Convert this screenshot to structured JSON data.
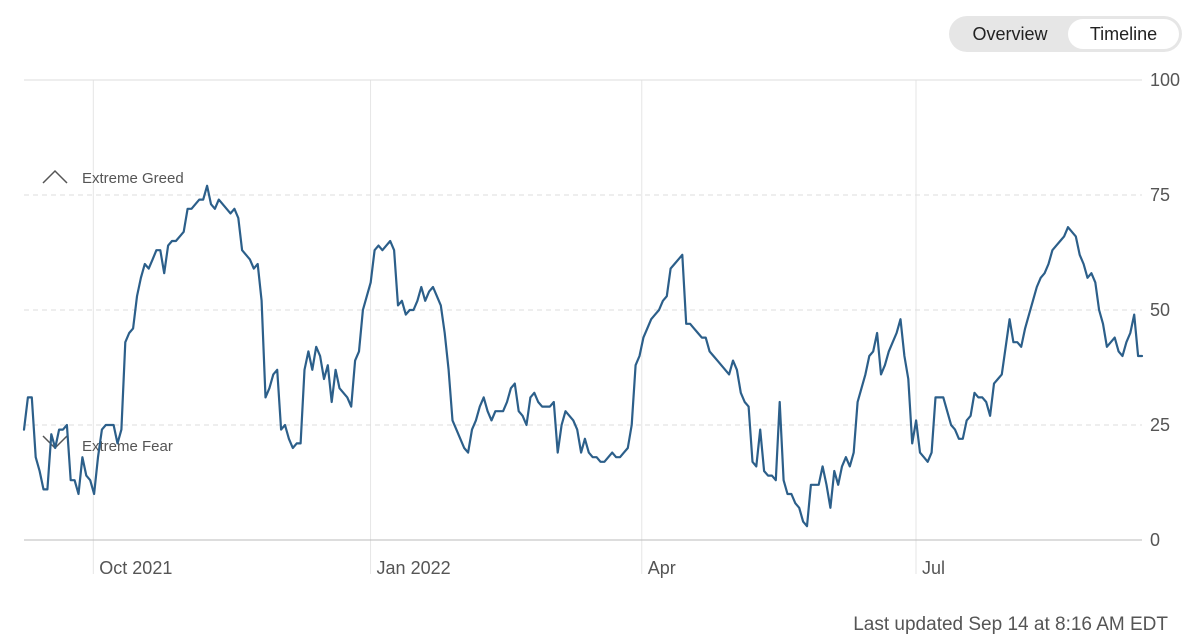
{
  "toggle": {
    "options": [
      "Overview",
      "Timeline"
    ],
    "selected": "Timeline"
  },
  "footer": {
    "last_updated": "Last updated Sep 14 at 8:16 AM EDT"
  },
  "colors": {
    "line": "#2c5f8a",
    "grid": "#dddddd",
    "vgrid": "#e6e6e6",
    "axis_text": "#555555",
    "marker": "#555555"
  },
  "chart_data": {
    "type": "line",
    "title": "",
    "xlabel": "",
    "ylabel": "",
    "ylim": [
      0,
      100
    ],
    "yticks": [
      0,
      25,
      50,
      75,
      100
    ],
    "x_ticks": [
      "Oct 2021",
      "Jan 2022",
      "Apr",
      "Jul"
    ],
    "x_range": [
      "2021-09-08",
      "2022-09-14"
    ],
    "grid": {
      "horizontal": "dashed",
      "vertical": "solid"
    },
    "annotations": [
      {
        "label": "Extreme Greed",
        "marker": "caret-up-icon",
        "value": 75
      },
      {
        "label": "Extreme Fear",
        "marker": "caret-down-icon",
        "value": 25
      }
    ],
    "series": [
      {
        "values": [
          24,
          31,
          31,
          18,
          15,
          11,
          11,
          23,
          20,
          24,
          24,
          25,
          13,
          13,
          10,
          18,
          14,
          13,
          10,
          18,
          24,
          25,
          25,
          25,
          21,
          24,
          43,
          45,
          46,
          53,
          57,
          60,
          59,
          61,
          63,
          63,
          58,
          64,
          65,
          65,
          66,
          67,
          72,
          72,
          73,
          74,
          74,
          77,
          73,
          72,
          74,
          73,
          72,
          71,
          72,
          70,
          63,
          62,
          61,
          59,
          60,
          52,
          31,
          33,
          36,
          37,
          24,
          25,
          22,
          20,
          21,
          21,
          37,
          41,
          37,
          42,
          40,
          35,
          38,
          30,
          37,
          33,
          32,
          31,
          29,
          39,
          41,
          50,
          53,
          56,
          63,
          64,
          63,
          64,
          65,
          63,
          51,
          52,
          49,
          50,
          50,
          52,
          55,
          52,
          54,
          55,
          53,
          51,
          45,
          37,
          26,
          24,
          22,
          20,
          19,
          24,
          26,
          29,
          31,
          28,
          26,
          28,
          28,
          28,
          30,
          33,
          34,
          28,
          27,
          25,
          31,
          32,
          30,
          29,
          29,
          29,
          30,
          19,
          25,
          28,
          27,
          26,
          24,
          19,
          22,
          19,
          18,
          18,
          17,
          17,
          18,
          19,
          18,
          18,
          19,
          20,
          25,
          38,
          40,
          44,
          46,
          48,
          49,
          50,
          52,
          53,
          59,
          60,
          61,
          62,
          47,
          47,
          46,
          45,
          44,
          44,
          41,
          40,
          39,
          38,
          37,
          36,
          39,
          37,
          32,
          30,
          29,
          17,
          16,
          24,
          15,
          14,
          14,
          13,
          30,
          13,
          10,
          10,
          8,
          7,
          4,
          3,
          12,
          12,
          12,
          16,
          12,
          7,
          15,
          12,
          16,
          18,
          16,
          19,
          30,
          33,
          36,
          40,
          41,
          45,
          36,
          38,
          41,
          43,
          45,
          48,
          40,
          35,
          21,
          26,
          19,
          18,
          17,
          19,
          31,
          31,
          31,
          28,
          25,
          24,
          22,
          22,
          26,
          27,
          32,
          31,
          31,
          30,
          27,
          34,
          35,
          36,
          42,
          48,
          43,
          43,
          42,
          46,
          49,
          52,
          55,
          57,
          58,
          60,
          63,
          64,
          65,
          66,
          68,
          67,
          66,
          62,
          60,
          57,
          58,
          56,
          50,
          47,
          42,
          43,
          44,
          41,
          40,
          43,
          45,
          49,
          40,
          40
        ]
      }
    ]
  }
}
